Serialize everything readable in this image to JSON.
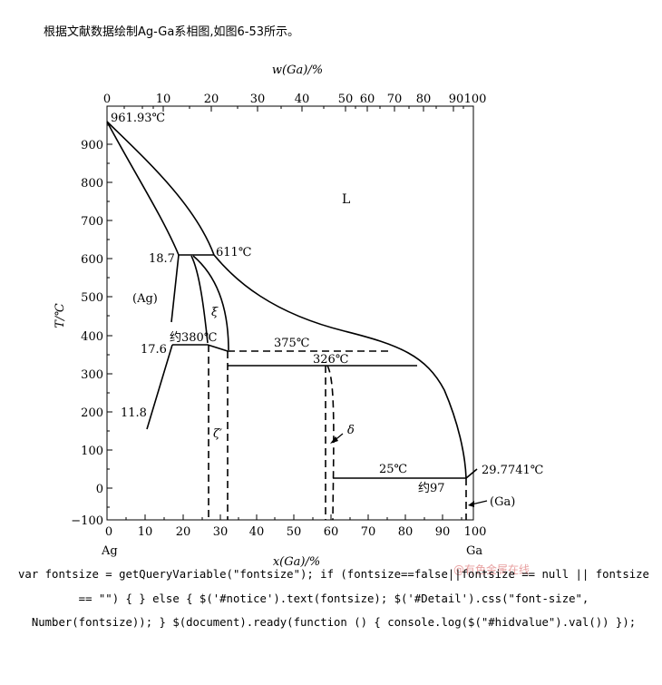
{
  "heading": "根据文献数据绘制Ag-Ga系相图,如图6-53所示。",
  "watermark": "@有色金属在线",
  "code_text": "var fontsize = getQueryVariable(\"fontsize\"); if (fontsize==false||fontsize == null || fontsize == \"\") { } else { $('#notice').text(fontsize); $('#Detail').css(\"font-size\", Number(fontsize)); } $(document).ready(function () { console.log($(\"#hidvalue\").val()) });",
  "diagram": {
    "top_axis_title": "w(Ga)/%",
    "bottom_axis_title": "x(Ga)/%",
    "y_axis_title": "T/℃",
    "left_element": "Ag",
    "right_element": "Ga",
    "top_ticks": [
      "0",
      "10",
      "20",
      "30",
      "40",
      "50",
      "60",
      "70",
      "80",
      "90",
      "100"
    ],
    "bottom_ticks": [
      "0",
      "10",
      "20",
      "30",
      "40",
      "50",
      "60",
      "70",
      "80",
      "90",
      "100"
    ],
    "y_ticks": [
      "−100",
      "0",
      "100",
      "200",
      "300",
      "400",
      "500",
      "600",
      "700",
      "800",
      "900"
    ],
    "labels": {
      "ag_melting": "961.93℃",
      "liquid": "L",
      "peritectic_611": "611℃",
      "comp_18_7": "18.7",
      "ag_phase": "(Ag)",
      "xi": "ξ",
      "approx_380": "约380℃",
      "comp_17_6": "17.6",
      "t_375": "375℃",
      "t_326": "326℃",
      "comp_11_8": "11.8",
      "zeta_prime": "ζ′",
      "delta": "δ",
      "t_25": "25℃",
      "ga_melting": "29.7741℃",
      "approx_97": "约97",
      "ga_phase": "(Ga)"
    }
  }
}
